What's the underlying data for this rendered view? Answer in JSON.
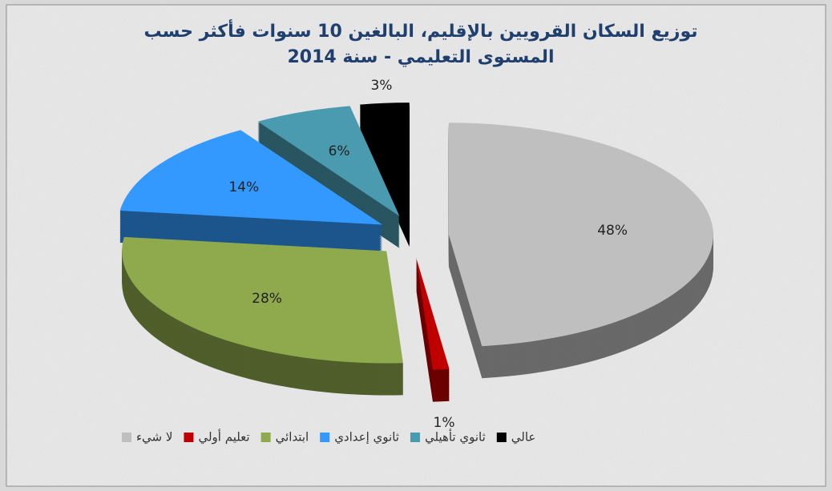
{
  "chart_data": {
    "type": "pie3d",
    "title": [
      "توزيع السكان القرويين بالإقليم، البالغين 10 سنوات فأكثر حسب",
      "المستوى التعليمي - سنة 2014"
    ],
    "categories": [
      "لا شيء",
      "تعليم أولي",
      "ابتدائي",
      "ثانوي إعدادي",
      "ثانوي تأهيلي",
      "عالي"
    ],
    "values": [
      48,
      1,
      28,
      14,
      6,
      3
    ],
    "value_labels": [
      "48%",
      "1%",
      "28%",
      "14%",
      "6%",
      "3%"
    ],
    "colors": [
      "#bfbfbf",
      "#c00000",
      "#8faa4c",
      "#3399ff",
      "#4a9bb0",
      "#000000"
    ],
    "legend": "bottom"
  }
}
